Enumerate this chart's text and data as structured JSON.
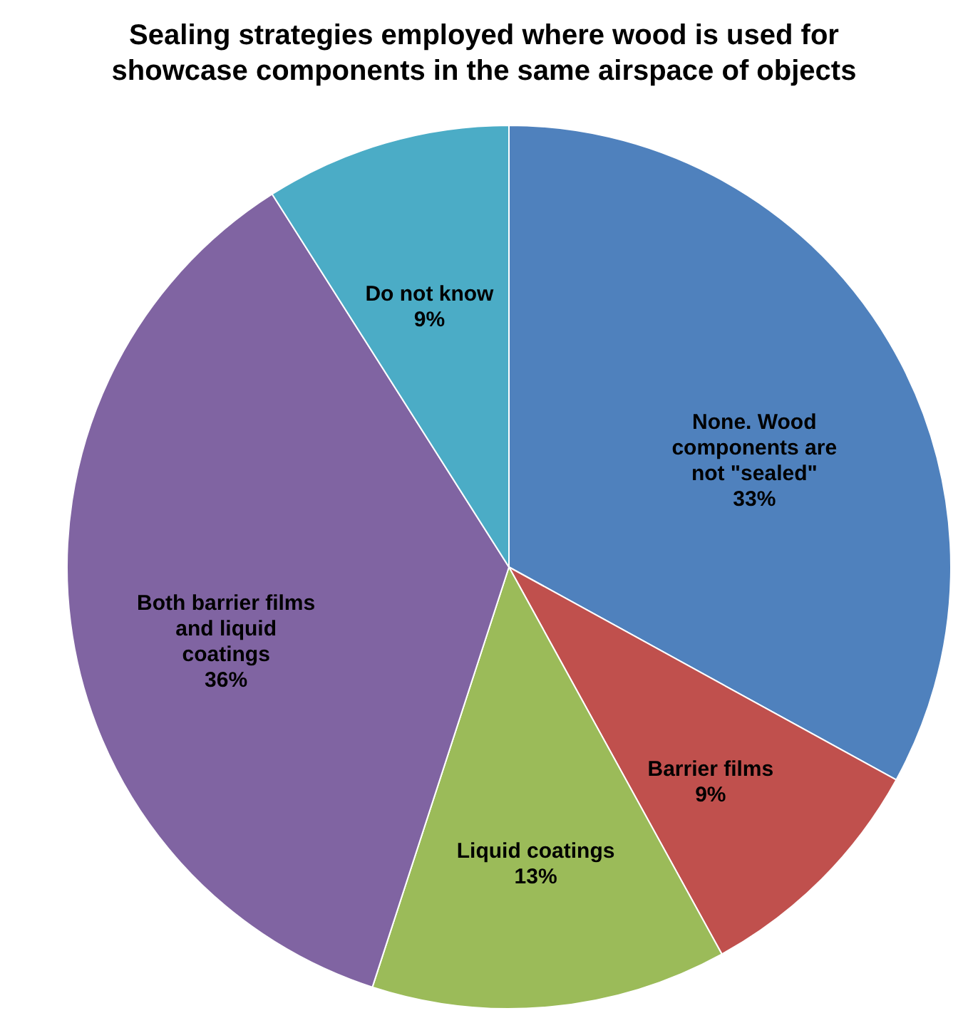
{
  "chart_data": {
    "type": "pie",
    "title": "Sealing strategies employed where wood is used for\nshowcase components in the same airspace of objects",
    "categories": [
      "None. Wood\ncomponents are\nnot \"sealed\"",
      "Barrier films",
      "Liquid coatings",
      "Both barrier films\nand liquid\ncoatings",
      "Do not know"
    ],
    "values": [
      33,
      9,
      13,
      36,
      9
    ],
    "colors": [
      "#4f81bd",
      "#c0504d",
      "#9bbb59",
      "#8064a2",
      "#4bacc6"
    ],
    "value_labels": [
      "33%",
      "9%",
      "13%",
      "36%",
      "9%"
    ],
    "legend": false
  }
}
